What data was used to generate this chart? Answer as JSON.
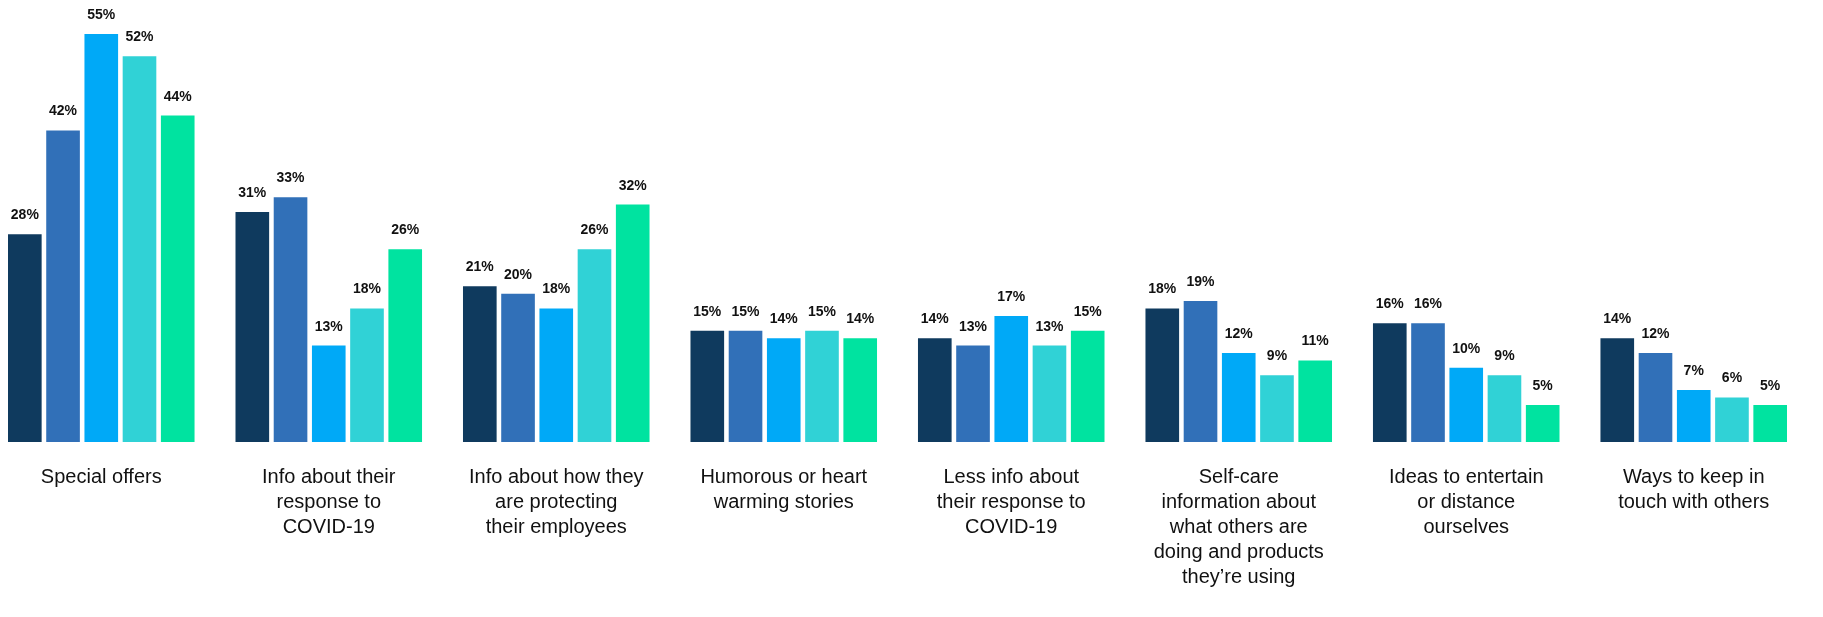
{
  "chart_data": {
    "type": "bar",
    "categories": [
      "Special offers",
      "Info about their response to COVID-19",
      "Info about how they are protecting their employees",
      "Humorous or heart warming stories",
      "Less info about their response to COVID-19",
      "Self-care information about what others are doing and products they’re using",
      "Ideas to entertain or distance ourselves",
      "Ways to keep in touch with others"
    ],
    "series": [
      {
        "color": "#0f3a5e",
        "values": [
          28,
          31,
          21,
          15,
          14,
          18,
          16,
          14
        ],
        "value_labels": [
          "28%",
          "31%",
          "21%",
          "15%",
          "14%",
          "18%",
          "16%",
          "14%"
        ]
      },
      {
        "color": "#3170b8",
        "values": [
          42,
          33,
          20,
          15,
          13,
          19,
          16,
          12
        ],
        "value_labels": [
          "42%",
          "33%",
          "20%",
          "15%",
          "13%",
          "19%",
          "16%",
          "12%"
        ]
      },
      {
        "color": "#00a9f7",
        "values": [
          55,
          13,
          18,
          14,
          17,
          12,
          10,
          7
        ],
        "value_labels": [
          "55%",
          "13%",
          "18%",
          "14%",
          "17%",
          "12%",
          "10%",
          "7%"
        ]
      },
      {
        "color": "#30d2d6",
        "values": [
          52,
          18,
          26,
          15,
          13,
          9,
          9,
          6
        ],
        "value_labels": [
          "52%",
          "18%",
          "26%",
          "15%",
          "13%",
          "9%",
          "9%",
          "6%"
        ]
      },
      {
        "color": "#00e3a0",
        "values": [
          44,
          26,
          32,
          14,
          15,
          11,
          5,
          5
        ],
        "value_labels": [
          "44%",
          "26%",
          "32%",
          "14%",
          "15%",
          "11%",
          "5%",
          "5%"
        ]
      }
    ],
    "tick_labels": "x",
    "legend": false,
    "grid": false
  }
}
